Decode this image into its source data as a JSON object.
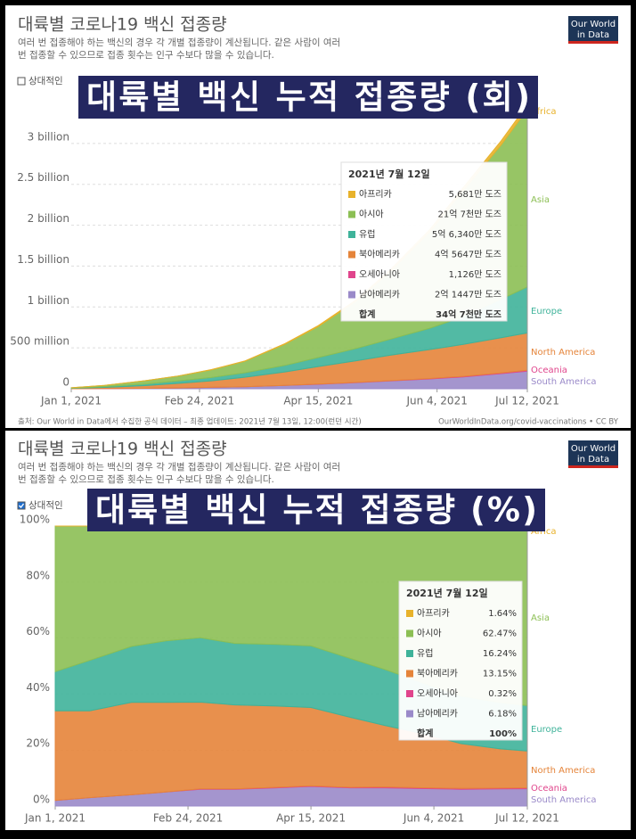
{
  "chart_data": [
    {
      "type": "area",
      "title": "대륙별 코로나19 백신 접종량",
      "subtitle": [
        "여러 번 접종해야 하는 백신의 경우 각 개별 접종량이 계산됩니다. 같은 사람이 여러",
        "번 접종할 수 있으므로 접종 횟수는 인구 수보다 많을 수 있습니다."
      ],
      "logo": [
        "Our World",
        "in Data"
      ],
      "relative_label": "상대적인",
      "relative": false,
      "banner": "대륙별 백신 누적 접종량 (회)",
      "x": [
        "2021-01-01",
        "2021-01-15",
        "2021-02-01",
        "2021-02-15",
        "2021-03-01",
        "2021-03-15",
        "2021-04-01",
        "2021-04-15",
        "2021-05-01",
        "2021-05-15",
        "2021-06-01",
        "2021-06-15",
        "2021-07-01",
        "2021-07-12"
      ],
      "xlim": [
        "2021-01-01",
        "2021-07-12"
      ],
      "xticks": [
        {
          "value": "2021-01-01",
          "label": "Jan 1, 2021"
        },
        {
          "value": "2021-02-24",
          "label": "Feb 24, 2021"
        },
        {
          "value": "2021-04-15",
          "label": "Apr 15, 2021"
        },
        {
          "value": "2021-06-04",
          "label": "Jun 4, 2021"
        },
        {
          "value": "2021-07-12",
          "label": "Jul 12, 2021"
        }
      ],
      "ylim": [
        0,
        3500000000
      ],
      "yticks": [
        0,
        {
          "value": 500000000,
          "label": "500 million"
        },
        {
          "value": 1000000000,
          "label": "1 billion"
        },
        {
          "value": 1500000000,
          "label": "1.5 billion"
        },
        {
          "value": 2000000000,
          "label": "2 billion"
        },
        {
          "value": 2500000000,
          "label": "2.5 billion"
        },
        {
          "value": 3000000000,
          "label": "3 billion"
        }
      ],
      "grid": true,
      "series": [
        {
          "name": "South America",
          "color": "#9a8ac9",
          "values": [
            500000,
            2000000,
            5000000,
            10000000,
            17000000,
            25000000,
            40000000,
            55000000,
            75000000,
            95000000,
            120000000,
            145000000,
            185000000,
            214470000
          ]
        },
        {
          "name": "Oceania",
          "color": "#e0458c",
          "values": [
            0,
            0,
            0,
            0,
            200000,
            500000,
            1000000,
            1500000,
            2500000,
            3500000,
            5000000,
            7000000,
            9500000,
            11260000
          ]
        },
        {
          "name": "North America",
          "color": "#e5843a",
          "values": [
            5000000,
            14000000,
            33000000,
            55000000,
            80000000,
            115000000,
            165000000,
            215000000,
            265000000,
            310000000,
            355000000,
            390000000,
            430000000,
            456470000
          ]
        },
        {
          "name": "Europe",
          "color": "#3fb39a",
          "values": [
            3000000,
            10000000,
            20000000,
            30000000,
            40000000,
            55000000,
            80000000,
            110000000,
            150000000,
            195000000,
            260000000,
            340000000,
            470000000,
            563400000
          ]
        },
        {
          "name": "Asia",
          "color": "#8cbf54",
          "values": [
            3000000,
            14000000,
            40000000,
            60000000,
            95000000,
            140000000,
            260000000,
            380000000,
            580000000,
            820000000,
            1180000000,
            1540000000,
            1890000000,
            2170000000
          ]
        },
        {
          "name": "Africa",
          "color": "#e8b22b",
          "values": [
            0,
            100000,
            300000,
            800000,
            2000000,
            4000000,
            7000000,
            11000000,
            16000000,
            22000000,
            30000000,
            38000000,
            49000000,
            56810000
          ]
        }
      ],
      "tooltip": {
        "title": "2021년 7월 12일",
        "rows": [
          {
            "name": "아프리카",
            "value": "5,681만 도즈"
          },
          {
            "name": "아시아",
            "value": "21억 7천만 도즈"
          },
          {
            "name": "유럽",
            "value": "5억 6,340만 도즈"
          },
          {
            "name": "북아메리카",
            "value": "4억 5647만 도즈"
          },
          {
            "name": "오세아니아",
            "value": "1,126만 도즈"
          },
          {
            "name": "남아메리카",
            "value": "2억 1447만 도즈"
          }
        ],
        "total": {
          "name": "합계",
          "value": "34억 7천만 도즈"
        }
      },
      "footer": [
        "출처: Our World in Data에서 수집한 공식 데이터 – 최종 업데이트: 2021년 7월 13일, 12:00(런던 시간)",
        "OurWorldInData.org/covid-vaccinations • CC BY"
      ]
    },
    {
      "type": "area",
      "title": "대륙별 코로나19 백신 접종량",
      "subtitle": [
        "여러 번 접종해야 하는 백신의 경우 각 개별 접종량이 계산됩니다. 같은 사람이 여러",
        "번 접종할 수 있으므로 접종 횟수는 인구 수보다 많을 수 있습니다."
      ],
      "logo": [
        "Our World",
        "in Data"
      ],
      "relative_label": "상대적인",
      "relative": true,
      "banner": "대륙별 백신 누적 접종량 (%)",
      "x": [
        "2021-01-01",
        "2021-01-15",
        "2021-02-01",
        "2021-02-15",
        "2021-03-01",
        "2021-03-15",
        "2021-04-01",
        "2021-04-15",
        "2021-05-01",
        "2021-05-15",
        "2021-06-01",
        "2021-06-15",
        "2021-07-01",
        "2021-07-12"
      ],
      "xlim": [
        "2021-01-01",
        "2021-07-12"
      ],
      "xticks": [
        {
          "value": "2021-01-01",
          "label": "Jan 1, 2021"
        },
        {
          "value": "2021-02-24",
          "label": "Feb 24, 2021"
        },
        {
          "value": "2021-04-15",
          "label": "Apr 15, 2021"
        },
        {
          "value": "2021-06-04",
          "label": "Jun 4, 2021"
        },
        {
          "value": "2021-07-12",
          "label": "Jul 12, 2021"
        }
      ],
      "ylim": [
        0,
        100
      ],
      "yticks": [
        {
          "value": 0,
          "label": "0%"
        },
        {
          "value": 20,
          "label": "20%"
        },
        {
          "value": 40,
          "label": "40%"
        },
        {
          "value": 60,
          "label": "60%"
        },
        {
          "value": 80,
          "label": "80%"
        },
        {
          "value": 100,
          "label": "100%"
        }
      ],
      "grid": true,
      "series": [
        {
          "name": "South America",
          "color": "#9a8ac9",
          "values": [
            2,
            3,
            4,
            5,
            6,
            6,
            6.5,
            7,
            6.5,
            6.5,
            6.2,
            6,
            6.1,
            6.18
          ]
        },
        {
          "name": "Oceania",
          "color": "#e0458c",
          "values": [
            0,
            0,
            0,
            0,
            0.1,
            0.1,
            0.2,
            0.2,
            0.2,
            0.3,
            0.3,
            0.3,
            0.3,
            0.32
          ]
        },
        {
          "name": "North America",
          "color": "#e5843a",
          "values": [
            32,
            31,
            33,
            32,
            31,
            30,
            29,
            28,
            25,
            22,
            19,
            16,
            14,
            13.15
          ]
        },
        {
          "name": "Europe",
          "color": "#3fb39a",
          "values": [
            14,
            18,
            20,
            22,
            23,
            22,
            22,
            22,
            21,
            20,
            18,
            17,
            16.5,
            16.24
          ]
        },
        {
          "name": "Asia",
          "color": "#8cbf54",
          "values": [
            52,
            48,
            42.7,
            40.5,
            39,
            40.8,
            41.1,
            41.5,
            45.9,
            49.7,
            55,
            59.1,
            61.5,
            62.47
          ]
        },
        {
          "name": "Africa",
          "color": "#e8b22b",
          "values": [
            0,
            0,
            0.3,
            0.5,
            0.9,
            1.1,
            1.2,
            1.3,
            1.4,
            1.5,
            1.5,
            1.6,
            1.6,
            1.64
          ]
        }
      ],
      "tooltip": {
        "title": "2021년 7월 12일",
        "rows": [
          {
            "name": "아프리카",
            "value": "1.64%"
          },
          {
            "name": "아시아",
            "value": "62.47%"
          },
          {
            "name": "유럽",
            "value": "16.24%"
          },
          {
            "name": "북아메리카",
            "value": "13.15%"
          },
          {
            "name": "오세아니아",
            "value": "0.32%"
          },
          {
            "name": "남아메리카",
            "value": "6.18%"
          }
        ],
        "total": {
          "name": "합계",
          "value": "100%"
        }
      }
    }
  ]
}
